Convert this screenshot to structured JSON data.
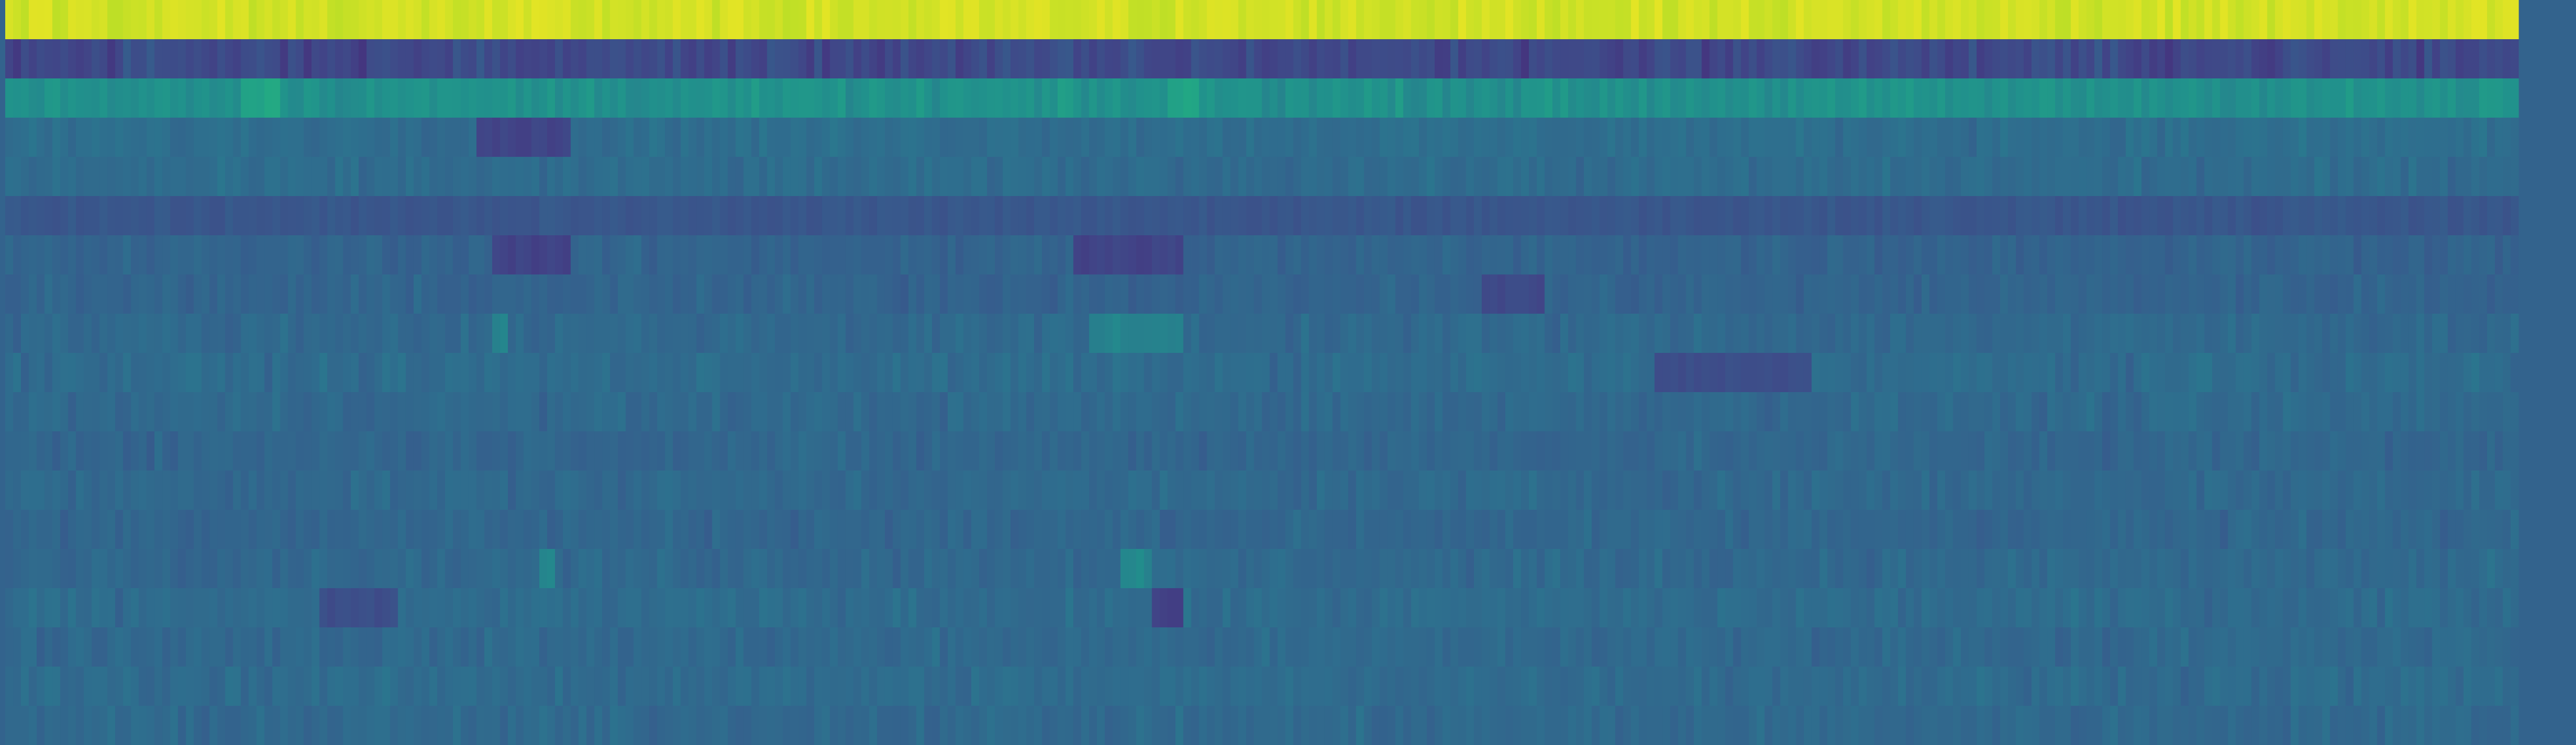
{
  "chart_data": {
    "type": "heatmap",
    "colormap": "viridis",
    "value_range": [
      0,
      1
    ],
    "n_rows": 19,
    "n_cols": 320,
    "title": "",
    "xlabel": "",
    "ylabel": "",
    "legend": "none",
    "grid": false,
    "background_color": "#33638d",
    "row_mean_values": [
      0.87,
      0.22,
      0.5,
      0.36,
      0.35,
      0.3,
      0.32,
      0.32,
      0.34,
      0.35,
      0.34,
      0.33,
      0.34,
      0.33,
      0.34,
      0.35,
      0.34,
      0.35,
      0.34
    ],
    "row_spread_values": [
      0.06,
      0.05,
      0.04,
      0.03,
      0.03,
      0.04,
      0.03,
      0.03,
      0.03,
      0.03,
      0.03,
      0.03,
      0.03,
      0.03,
      0.03,
      0.03,
      0.03,
      0.03,
      0.03
    ],
    "low_bands": [
      {
        "row": 3,
        "cols": [
          60,
          72
        ],
        "value": 0.2
      },
      {
        "row": 5,
        "cols": [
          0,
          320
        ],
        "value": 0.27
      },
      {
        "row": 6,
        "cols": [
          62,
          72
        ],
        "value": 0.2
      },
      {
        "row": 6,
        "cols": [
          136,
          150
        ],
        "value": 0.2
      },
      {
        "row": 7,
        "cols": [
          188,
          196
        ],
        "value": 0.22
      },
      {
        "row": 9,
        "cols": [
          210,
          230
        ],
        "value": 0.24
      },
      {
        "row": 15,
        "cols": [
          40,
          50
        ],
        "value": 0.24
      },
      {
        "row": 15,
        "cols": [
          146,
          150
        ],
        "value": 0.2
      }
    ],
    "high_bands": [
      {
        "row": 0,
        "cols": [
          0,
          320
        ],
        "value": 0.93
      },
      {
        "row": 2,
        "cols": [
          30,
          35
        ],
        "value": 0.58
      },
      {
        "row": 2,
        "cols": [
          148,
          152
        ],
        "value": 0.58
      },
      {
        "row": 8,
        "cols": [
          62,
          64
        ],
        "value": 0.44
      },
      {
        "row": 8,
        "cols": [
          138,
          150
        ],
        "value": 0.44
      },
      {
        "row": 14,
        "cols": [
          68,
          70
        ],
        "value": 0.46
      },
      {
        "row": 14,
        "cols": [
          142,
          146
        ],
        "value": 0.46
      }
    ]
  }
}
